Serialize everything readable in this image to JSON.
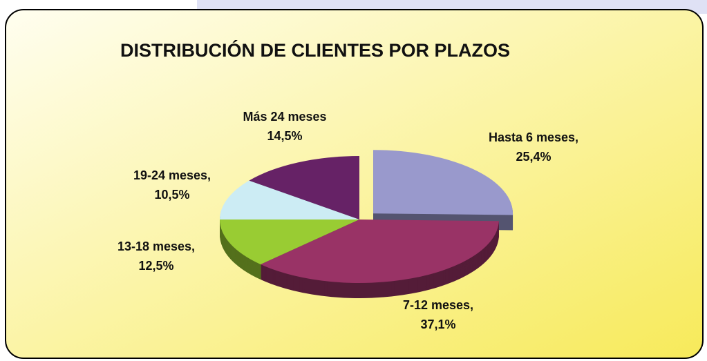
{
  "chart_data": {
    "type": "pie3d",
    "title": "DISTRIBUCIÓN DE CLIENTES POR PLAZOS",
    "categories": [
      "Hasta 6 meses,",
      "7-12 meses,",
      "13-18 meses,",
      "19-24 meses,",
      "Más 24 meses"
    ],
    "values": [
      25.4,
      37.1,
      12.5,
      10.5,
      14.5
    ],
    "value_labels": [
      "25,4%",
      "37,1%",
      "12,5%",
      "10,5%",
      "14,5%"
    ],
    "colors": [
      "#9999cc",
      "#993366",
      "#99cc33",
      "#ccecf4",
      "#662266"
    ]
  }
}
